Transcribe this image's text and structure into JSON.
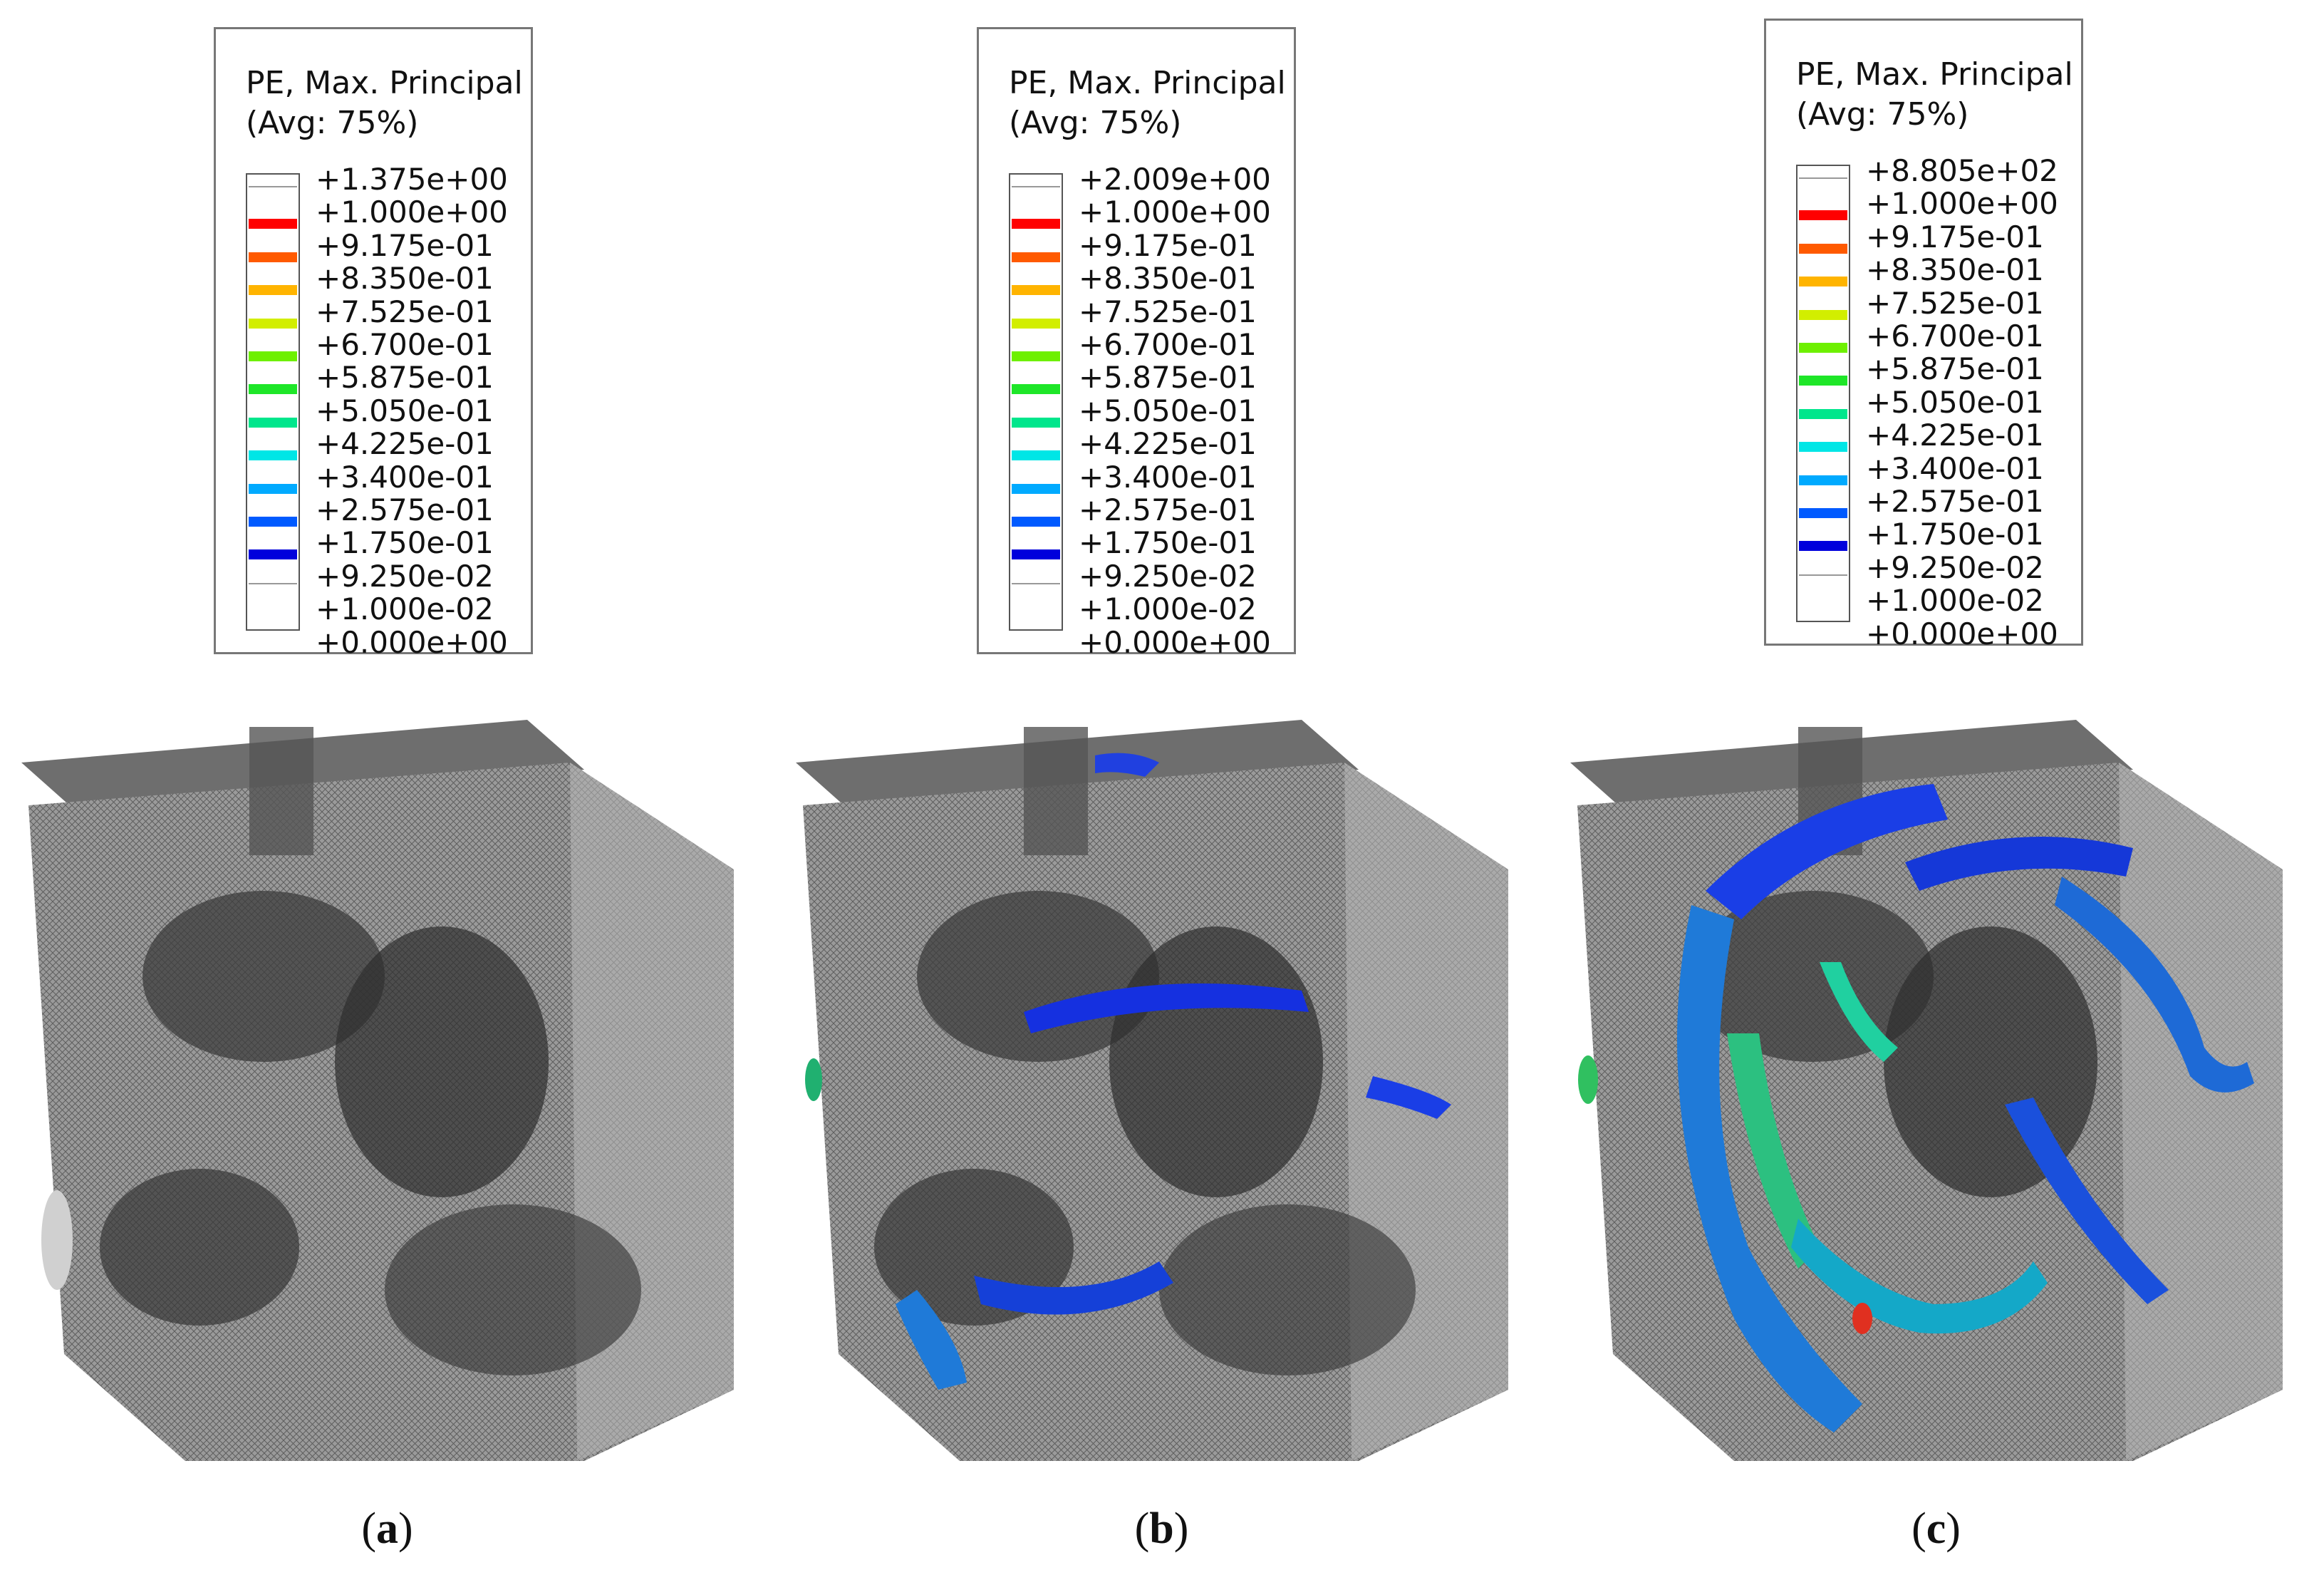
{
  "legend_title_line1": "PE, Max. Principal",
  "legend_title_line2": "(Avg: 75%)",
  "legend_colors": [
    "#ffffff",
    "#ff0000",
    "#ff5a00",
    "#ffb400",
    "#d2ee00",
    "#6ef000",
    "#1ee628",
    "#00e68c",
    "#00e6e6",
    "#00aaff",
    "#005aff",
    "#0000dc",
    "#ffffff"
  ],
  "panels": [
    {
      "id": "a",
      "caption": "a",
      "legend_labels": [
        "+1.375e+00",
        "+1.000e+00",
        "+9.175e-01",
        "+8.350e-01",
        "+7.525e-01",
        "+6.700e-01",
        "+5.875e-01",
        "+5.050e-01",
        "+4.225e-01",
        "+3.400e-01",
        "+2.575e-01",
        "+1.750e-01",
        "+9.250e-02",
        "+1.000e-02",
        "+0.000e+00"
      ]
    },
    {
      "id": "b",
      "caption": "b",
      "legend_labels": [
        "+2.009e+00",
        "+1.000e+00",
        "+9.175e-01",
        "+8.350e-01",
        "+7.525e-01",
        "+6.700e-01",
        "+5.875e-01",
        "+5.050e-01",
        "+4.225e-01",
        "+3.400e-01",
        "+2.575e-01",
        "+1.750e-01",
        "+9.250e-02",
        "+1.000e-02",
        "+0.000e+00"
      ]
    },
    {
      "id": "c",
      "caption": "c",
      "legend_labels": [
        "+8.805e+02",
        "+1.000e+00",
        "+9.175e-01",
        "+8.350e-01",
        "+7.525e-01",
        "+6.700e-01",
        "+5.875e-01",
        "+5.050e-01",
        "+4.225e-01",
        "+3.400e-01",
        "+2.575e-01",
        "+1.750e-01",
        "+9.250e-02",
        "+1.000e-02",
        "+0.000e+00"
      ]
    }
  ]
}
